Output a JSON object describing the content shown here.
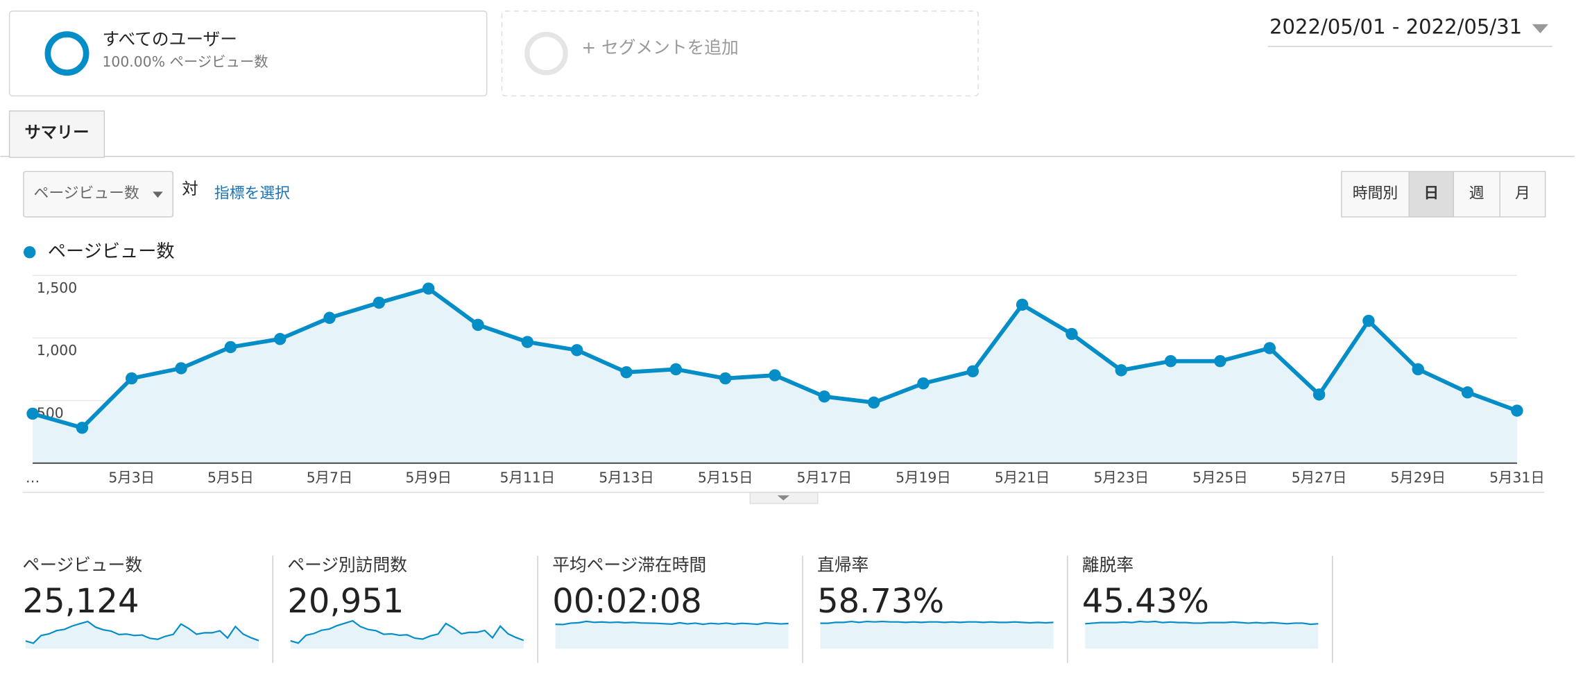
{
  "segments": [
    {
      "name": "すべてのユーザー",
      "detail": "100.00% ページビュー数"
    }
  ],
  "add_segment": "+ セグメントを追加",
  "date_range": "2022/05/01 - 2022/05/31",
  "tab": "サマリー",
  "metric_select": "ページビュー数",
  "versus": "対",
  "choose_metric": "指標を選択",
  "granularity": [
    "時間別",
    "日",
    "週",
    "月"
  ],
  "chart_data": {
    "type": "line",
    "series": [
      {
        "name": "ページビュー数",
        "color": "#058dc7",
        "values": [
          395,
          282,
          677,
          758,
          927,
          992,
          1161,
          1282,
          1395,
          1105,
          968,
          903,
          726,
          750,
          677,
          702,
          532,
          484,
          637,
          734,
          1266,
          1032,
          742,
          815,
          815,
          919,
          548,
          1137,
          750,
          565,
          419
        ]
      }
    ],
    "categories": [
      "…",
      null,
      "5月3日",
      null,
      "5月5日",
      null,
      "5月7日",
      null,
      "5月9日",
      null,
      "5月11日",
      null,
      "5月13日",
      null,
      "5月15日",
      null,
      "5月17日",
      null,
      "5月19日",
      null,
      "5月21日",
      null,
      "5月23日",
      null,
      "5月25日",
      null,
      "5月27日",
      null,
      "5月29日",
      null,
      "5月31日"
    ],
    "ylim": [
      0,
      1500
    ],
    "yticks": [
      500,
      {
        "value": 1000,
        "label": "1,000"
      },
      {
        "value": 1500,
        "label": "1,500"
      }
    ],
    "grid": true,
    "area": true
  },
  "summary": [
    {
      "label": "ページビュー数",
      "value": "25,124",
      "ylim": [
        0,
        1600
      ],
      "sparkline": [
        395,
        282,
        677,
        758,
        927,
        992,
        1161,
        1282,
        1395,
        1105,
        968,
        903,
        726,
        750,
        677,
        702,
        532,
        484,
        637,
        734,
        1266,
        1032,
        742,
        815,
        815,
        919,
        548,
        1137,
        750,
        565,
        419
      ]
    },
    {
      "label": "ページ別訪問数",
      "value": "20,951",
      "ylim": [
        0,
        1300
      ],
      "sparkline": [
        330,
        235,
        560,
        630,
        770,
        820,
        960,
        1060,
        1160,
        920,
        800,
        750,
        600,
        620,
        560,
        580,
        440,
        400,
        530,
        610,
        1050,
        860,
        620,
        680,
        680,
        760,
        455,
        940,
        620,
        470,
        350
      ]
    },
    {
      "label": "平均ページ滞在時間",
      "value": "00:02:08",
      "ylim": [
        0,
        160
      ],
      "sparkline": [
        125,
        124,
        131,
        133,
        140,
        135,
        137,
        134,
        136,
        133,
        135,
        132,
        131,
        130,
        128,
        126,
        133,
        127,
        131,
        125,
        130,
        127,
        131,
        126,
        130,
        128,
        125,
        132,
        130,
        127,
        129
      ]
    },
    {
      "label": "直帰率",
      "value": "58.73%",
      "ylim": [
        0,
        70
      ],
      "sparkline": [
        57,
        57,
        59,
        59,
        61,
        59,
        61,
        60,
        61,
        60,
        60,
        59,
        60,
        59,
        60,
        60,
        59,
        60,
        59,
        60,
        60,
        59,
        60,
        59,
        59,
        60,
        59,
        58,
        59,
        58,
        59
      ]
    },
    {
      "label": "離脱率",
      "value": "45.43%",
      "ylim": [
        0,
        55
      ],
      "sparkline": [
        44,
        45,
        46,
        46,
        46,
        47,
        46,
        48,
        47,
        48,
        46,
        47,
        46,
        46,
        45,
        45,
        46,
        46,
        46,
        47,
        46,
        45,
        46,
        45,
        46,
        45,
        44,
        45,
        45,
        43,
        44
      ]
    }
  ]
}
